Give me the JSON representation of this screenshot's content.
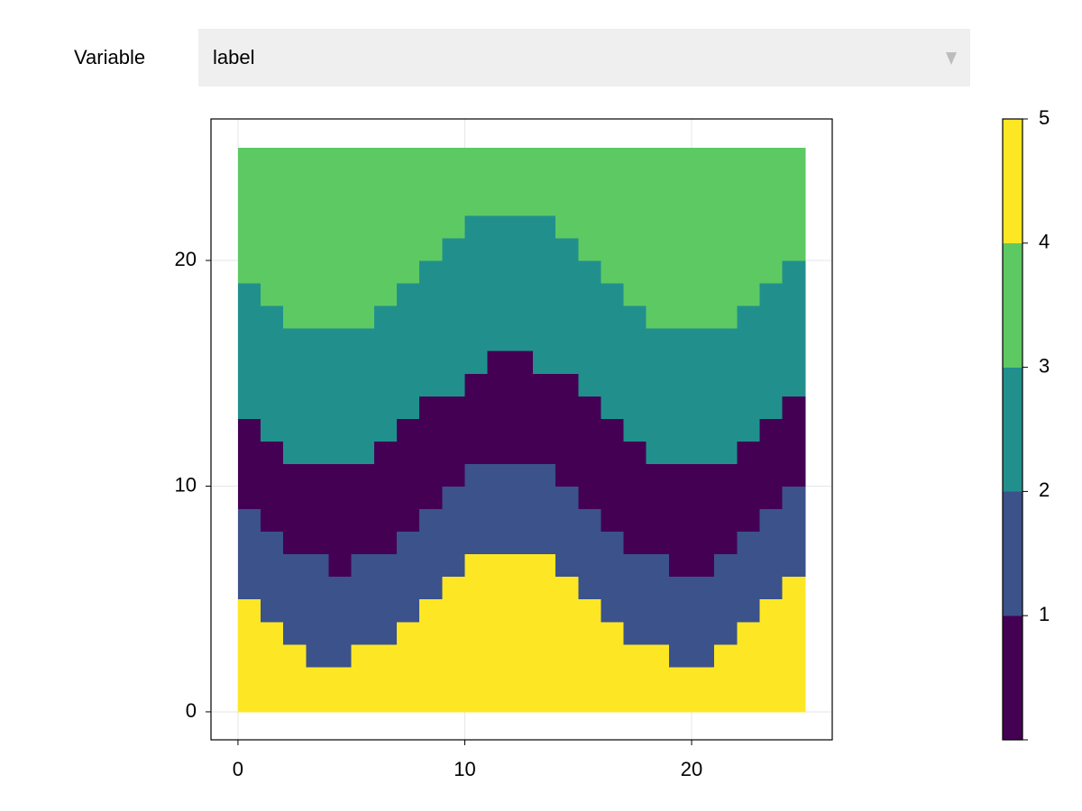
{
  "controls": {
    "label": "Variable",
    "value": "label"
  },
  "chart_data": {
    "type": "heatmap",
    "x_extent": [
      0,
      25
    ],
    "y_extent": [
      0,
      25
    ],
    "xlim": [
      -1.19,
      26.2
    ],
    "ylim": [
      -1.24,
      26.27
    ],
    "xticks": [
      0,
      10,
      20
    ],
    "yticks": [
      0,
      10,
      20
    ],
    "grid": true,
    "z": [
      [
        5,
        5,
        5,
        5,
        5,
        5,
        5,
        5,
        5,
        5,
        5,
        5,
        5,
        5,
        5,
        5,
        5,
        5,
        5,
        5,
        5,
        5,
        5,
        5,
        5
      ],
      [
        5,
        5,
        5,
        5,
        5,
        5,
        5,
        5,
        5,
        5,
        5,
        5,
        5,
        5,
        5,
        5,
        5,
        5,
        5,
        5,
        5,
        5,
        5,
        5,
        5
      ],
      [
        5,
        5,
        5,
        2,
        2,
        5,
        5,
        5,
        5,
        5,
        5,
        5,
        5,
        5,
        5,
        5,
        5,
        5,
        5,
        2,
        2,
        5,
        5,
        5,
        5
      ],
      [
        5,
        5,
        2,
        2,
        2,
        2,
        2,
        5,
        5,
        5,
        5,
        5,
        5,
        5,
        5,
        5,
        5,
        2,
        2,
        2,
        2,
        2,
        5,
        5,
        5
      ],
      [
        5,
        2,
        2,
        2,
        2,
        2,
        2,
        2,
        5,
        5,
        5,
        5,
        5,
        5,
        5,
        5,
        2,
        2,
        2,
        2,
        2,
        2,
        2,
        5,
        5
      ],
      [
        2,
        2,
        2,
        2,
        2,
        2,
        2,
        2,
        2,
        5,
        5,
        5,
        5,
        5,
        5,
        2,
        2,
        2,
        2,
        2,
        2,
        2,
        2,
        2,
        5
      ],
      [
        2,
        2,
        2,
        2,
        1,
        2,
        2,
        2,
        2,
        2,
        5,
        5,
        5,
        5,
        2,
        2,
        2,
        2,
        2,
        1,
        1,
        2,
        2,
        2,
        2
      ],
      [
        2,
        2,
        1,
        1,
        1,
        1,
        1,
        2,
        2,
        2,
        2,
        2,
        2,
        2,
        2,
        2,
        2,
        1,
        1,
        1,
        1,
        1,
        2,
        2,
        2
      ],
      [
        2,
        1,
        1,
        1,
        1,
        1,
        1,
        1,
        2,
        2,
        2,
        2,
        2,
        2,
        2,
        2,
        1,
        1,
        1,
        1,
        1,
        1,
        1,
        2,
        2
      ],
      [
        1,
        1,
        1,
        1,
        1,
        1,
        1,
        1,
        1,
        2,
        2,
        2,
        2,
        2,
        2,
        1,
        1,
        1,
        1,
        1,
        1,
        1,
        1,
        1,
        2
      ],
      [
        1,
        1,
        1,
        1,
        1,
        1,
        1,
        1,
        1,
        1,
        2,
        2,
        2,
        2,
        1,
        1,
        1,
        1,
        1,
        1,
        1,
        1,
        1,
        1,
        1
      ],
      [
        1,
        1,
        3,
        3,
        3,
        3,
        1,
        1,
        1,
        1,
        1,
        1,
        1,
        1,
        1,
        1,
        1,
        1,
        3,
        3,
        3,
        3,
        1,
        1,
        1
      ],
      [
        1,
        3,
        3,
        3,
        3,
        3,
        3,
        1,
        1,
        1,
        1,
        1,
        1,
        1,
        1,
        1,
        1,
        3,
        3,
        3,
        3,
        3,
        3,
        1,
        1
      ],
      [
        3,
        3,
        3,
        3,
        3,
        3,
        3,
        3,
        1,
        1,
        1,
        1,
        1,
        1,
        1,
        1,
        3,
        3,
        3,
        3,
        3,
        3,
        3,
        3,
        1
      ],
      [
        3,
        3,
        3,
        3,
        3,
        3,
        3,
        3,
        3,
        3,
        1,
        1,
        1,
        1,
        1,
        3,
        3,
        3,
        3,
        3,
        3,
        3,
        3,
        3,
        3
      ],
      [
        3,
        3,
        3,
        3,
        3,
        3,
        3,
        3,
        3,
        3,
        3,
        1,
        1,
        3,
        3,
        3,
        3,
        3,
        3,
        3,
        3,
        3,
        3,
        3,
        3
      ],
      [
        3,
        3,
        3,
        3,
        3,
        3,
        3,
        3,
        3,
        3,
        3,
        3,
        3,
        3,
        3,
        3,
        3,
        3,
        3,
        3,
        3,
        3,
        3,
        3,
        3
      ],
      [
        3,
        3,
        4,
        4,
        4,
        4,
        3,
        3,
        3,
        3,
        3,
        3,
        3,
        3,
        3,
        3,
        3,
        3,
        4,
        4,
        4,
        4,
        3,
        3,
        3
      ],
      [
        3,
        4,
        4,
        4,
        4,
        4,
        4,
        3,
        3,
        3,
        3,
        3,
        3,
        3,
        3,
        3,
        3,
        4,
        4,
        4,
        4,
        4,
        4,
        3,
        3
      ],
      [
        4,
        4,
        4,
        4,
        4,
        4,
        4,
        4,
        3,
        3,
        3,
        3,
        3,
        3,
        3,
        3,
        4,
        4,
        4,
        4,
        4,
        4,
        4,
        4,
        3
      ],
      [
        4,
        4,
        4,
        4,
        4,
        4,
        4,
        4,
        4,
        3,
        3,
        3,
        3,
        3,
        3,
        4,
        4,
        4,
        4,
        4,
        4,
        4,
        4,
        4,
        4
      ],
      [
        4,
        4,
        4,
        4,
        4,
        4,
        4,
        4,
        4,
        4,
        3,
        3,
        3,
        3,
        4,
        4,
        4,
        4,
        4,
        4,
        4,
        4,
        4,
        4,
        4
      ],
      [
        4,
        4,
        4,
        4,
        4,
        4,
        4,
        4,
        4,
        4,
        4,
        4,
        4,
        4,
        4,
        4,
        4,
        4,
        4,
        4,
        4,
        4,
        4,
        4,
        4
      ],
      [
        4,
        4,
        4,
        4,
        4,
        4,
        4,
        4,
        4,
        4,
        4,
        4,
        4,
        4,
        4,
        4,
        4,
        4,
        4,
        4,
        4,
        4,
        4,
        4,
        4
      ],
      [
        4,
        4,
        4,
        4,
        4,
        4,
        4,
        4,
        4,
        4,
        4,
        4,
        4,
        4,
        4,
        4,
        4,
        4,
        4,
        4,
        4,
        4,
        4,
        4,
        4
      ]
    ],
    "colorbar": {
      "lim": [
        0,
        5
      ],
      "ticks": [
        1,
        2,
        3,
        4,
        5
      ],
      "colors": [
        "#440154",
        "#3b528b",
        "#21908d",
        "#5dc963",
        "#fde725"
      ]
    }
  }
}
